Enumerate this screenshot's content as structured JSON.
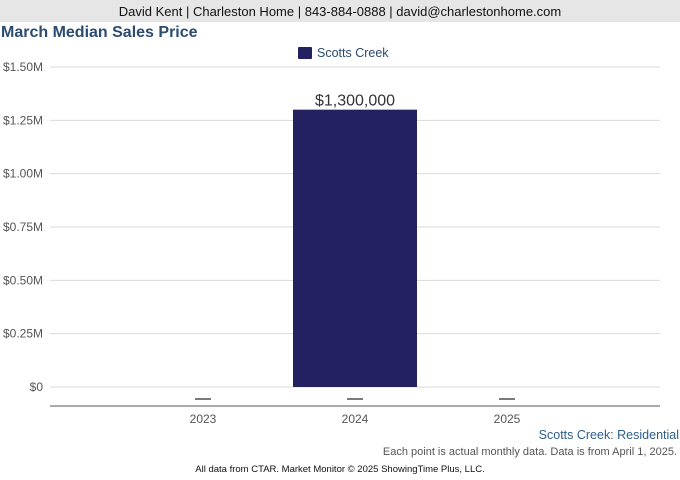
{
  "header": {
    "contact": "David Kent | Charleston Home | 843-884-0888 | david@charlestonhome.com"
  },
  "chart_data": {
    "type": "bar",
    "title": "March Median Sales Price",
    "categories": [
      "2023",
      "2024",
      "2025"
    ],
    "series": [
      {
        "name": "Scotts Creek",
        "values": [
          null,
          1300000,
          null
        ],
        "color": "#242160"
      }
    ],
    "data_labels": [
      "",
      "$1,300,000",
      ""
    ],
    "ylim": [
      0,
      1500000
    ],
    "yticks": [
      {
        "value": 0,
        "label": "$0"
      },
      {
        "value": 250000,
        "label": "$0.25M"
      },
      {
        "value": 500000,
        "label": "$0.50M"
      },
      {
        "value": 750000,
        "label": "$0.75M"
      },
      {
        "value": 1000000,
        "label": "$1.00M"
      },
      {
        "value": 1250000,
        "label": "$1.25M"
      },
      {
        "value": 1500000,
        "label": "$1.50M"
      }
    ],
    "grid": true,
    "legend": "top"
  },
  "footer": {
    "subtitle": "Scotts Creek: Residential",
    "note": "Each point is actual monthly data. Data is from April 1, 2025.",
    "credit": "All data from CTAR. Market Monitor © 2025 ShowingTime Plus, LLC."
  }
}
